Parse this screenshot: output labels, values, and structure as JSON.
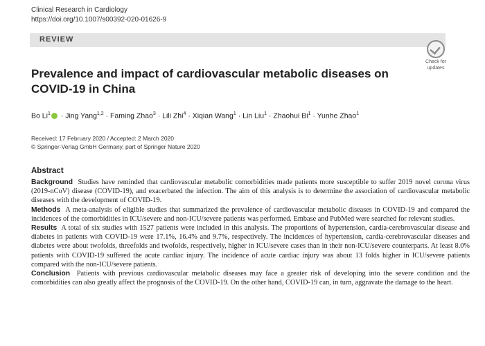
{
  "journal": {
    "name": "Clinical Research in Cardiology",
    "doi": "https://doi.org/10.1007/s00392-020-01626-9"
  },
  "section_label": "REVIEW",
  "check_badge": {
    "line1": "Check for",
    "line2": "updates"
  },
  "title": "Prevalence and impact of cardiovascular metabolic diseases on COVID-19 in China",
  "authors": [
    {
      "name": "Bo Li",
      "sup": "1",
      "orcid": true
    },
    {
      "name": "Jing Yang",
      "sup": "1,2"
    },
    {
      "name": "Faming Zhao",
      "sup": "3"
    },
    {
      "name": "Lili Zhi",
      "sup": "4"
    },
    {
      "name": "Xiqian Wang",
      "sup": "1"
    },
    {
      "name": "Lin Liu",
      "sup": "1"
    },
    {
      "name": "Zhaohui Bi",
      "sup": "1"
    },
    {
      "name": "Yunhe Zhao",
      "sup": "1"
    }
  ],
  "author_separator": " · ",
  "dates": {
    "received_accepted": "Received: 17 February 2020 / Accepted: 2 March 2020",
    "copyright": "© Springer-Verlag GmbH Germany, part of Springer Nature 2020"
  },
  "abstract": {
    "heading": "Abstract",
    "background_label": "Background",
    "background_text": "Studies have reminded that cardiovascular metabolic comorbidities made patients more susceptible to suffer 2019 novel corona virus (2019-nCoV) disease (COVID-19), and exacerbated the infection. The aim of this analysis is to determine the association of cardiovascular metabolic diseases with the development of COVID-19.",
    "methods_label": "Methods",
    "methods_text": "A meta-analysis of eligible studies that summarized the prevalence of cardiovascular metabolic diseases in COVID-19 and compared the incidences of the comorbidities in ICU/severe and non-ICU/severe patients was performed. Embase and PubMed were searched for relevant studies.",
    "results_label": "Results",
    "results_text": "A total of six studies with 1527 patients were included in this analysis. The proportions of hypertension, cardia-cerebrovascular disease and diabetes in patients with COVID-19 were 17.1%, 16.4% and 9.7%, respectively. The incidences of hypertension, cardia-cerebrovascular diseases and diabetes were about twofolds, threefolds and twofolds, respectively, higher in ICU/severe cases than in their non-ICU/severe counterparts. At least 8.0% patients with COVID-19 suffered the acute cardiac injury. The incidence of acute cardiac injury was about 13 folds higher in ICU/severe patients compared with the non-ICU/severe patients.",
    "conclusion_label": "Conclusion",
    "conclusion_text": "Patients with previous cardiovascular metabolic diseases may face a greater risk of developing into the severe condition and the comorbidities can also greatly affect the prognosis of the COVID-19. On the other hand, COVID-19 can, in turn, aggravate the damage to the heart."
  }
}
